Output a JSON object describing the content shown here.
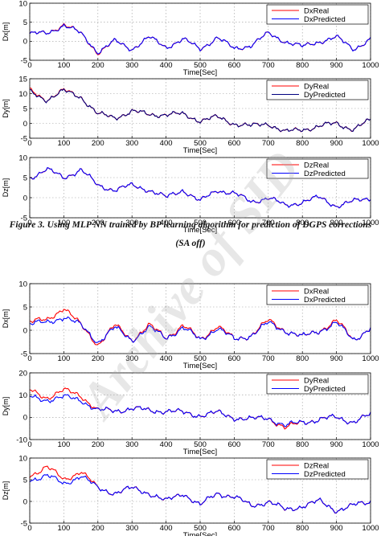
{
  "caption": {
    "line1": "Figure 3. Using MLP NN trained by BP learning algorithm for prediction of DGPS corrections",
    "line2": "(SA off)"
  },
  "watermark": "Archive of SID",
  "colors": {
    "real": "#ff0000",
    "predicted": "#0000ff",
    "predicted_dark": "#000080"
  },
  "chart_data": [
    {
      "type": "line",
      "ylabel": "Dx[m]",
      "xlabel": "Time[Sec]",
      "xlim": [
        0,
        1000
      ],
      "ylim": [
        -5,
        10
      ],
      "xticks": [
        0,
        100,
        200,
        300,
        400,
        500,
        600,
        700,
        800,
        900,
        1000
      ],
      "yticks": [
        -5,
        0,
        5,
        10
      ],
      "grid": true,
      "legend": "top-right",
      "x": [
        0,
        50,
        100,
        150,
        200,
        250,
        300,
        350,
        400,
        450,
        500,
        550,
        600,
        650,
        700,
        750,
        800,
        850,
        900,
        950,
        1000
      ],
      "series": [
        {
          "name": "DxReal",
          "values": [
            2,
            2,
            4.5,
            2,
            -3,
            0,
            -2,
            1,
            -1.5,
            0.5,
            -2,
            1,
            -2,
            -1,
            2,
            0,
            -1.5,
            0,
            1,
            -2,
            0.5
          ]
        },
        {
          "name": "DxPredicted",
          "values": [
            2,
            2,
            4.3,
            2,
            -2.8,
            0,
            -2,
            1,
            -1.5,
            0.5,
            -2,
            1,
            -2,
            -1,
            2,
            0,
            -1.5,
            0,
            1,
            -2,
            0.5
          ]
        }
      ]
    },
    {
      "type": "line",
      "ylabel": "Dy[m]",
      "xlabel": "Time[Sec]",
      "xlim": [
        0,
        1000
      ],
      "ylim": [
        -5,
        15
      ],
      "xticks": [
        0,
        100,
        200,
        300,
        400,
        500,
        600,
        700,
        800,
        900,
        1000
      ],
      "yticks": [
        -5,
        0,
        5,
        10,
        15
      ],
      "grid": true,
      "legend": "top-right",
      "x": [
        0,
        50,
        100,
        150,
        200,
        250,
        300,
        350,
        400,
        450,
        500,
        550,
        600,
        650,
        700,
        750,
        800,
        850,
        900,
        950,
        1000
      ],
      "series": [
        {
          "name": "DyReal",
          "values": [
            11,
            8,
            11,
            9,
            3,
            2,
            4,
            3,
            3,
            3,
            1,
            2,
            0,
            -1,
            0,
            -3,
            -2,
            -1,
            0,
            -2,
            1
          ]
        },
        {
          "name": "DyPredicted",
          "values": [
            10.5,
            8,
            10.8,
            9,
            3,
            2,
            4,
            3,
            3,
            3,
            1,
            2,
            0,
            -1,
            0,
            -3,
            -2,
            -1,
            0,
            -2,
            1
          ]
        }
      ]
    },
    {
      "type": "line",
      "ylabel": "Dz[m]",
      "xlabel": "Time[Sec]",
      "xlim": [
        0,
        1000
      ],
      "ylim": [
        -5,
        10
      ],
      "xticks": [
        0,
        100,
        200,
        300,
        400,
        500,
        600,
        700,
        800,
        900,
        1000
      ],
      "yticks": [
        -5,
        0,
        5,
        10
      ],
      "grid": true,
      "legend": "top-right",
      "x": [
        0,
        50,
        100,
        150,
        200,
        250,
        300,
        350,
        400,
        450,
        500,
        550,
        600,
        650,
        700,
        750,
        800,
        850,
        900,
        950,
        1000
      ],
      "series": [
        {
          "name": "DzReal",
          "values": [
            5,
            7,
            5,
            7,
            3,
            2,
            3,
            2,
            0,
            2,
            -1,
            2,
            1,
            -1,
            0,
            -2,
            -1,
            0,
            -2,
            -1,
            0
          ]
        },
        {
          "name": "DzPredicted",
          "values": [
            5,
            7,
            5,
            7,
            3,
            2,
            3,
            2,
            0,
            2,
            -1,
            2,
            1,
            -1,
            0,
            -2,
            -1,
            0,
            -2,
            -1,
            0
          ]
        }
      ]
    },
    {
      "type": "line",
      "ylabel": "Dx[m]",
      "xlabel": "Time[Sec]",
      "xlim": [
        0,
        1000
      ],
      "ylim": [
        -5,
        10
      ],
      "xticks": [
        0,
        100,
        200,
        300,
        400,
        500,
        600,
        700,
        800,
        900,
        1000
      ],
      "yticks": [
        -5,
        0,
        5,
        10
      ],
      "grid": true,
      "legend": "top-right",
      "x": [
        0,
        50,
        100,
        150,
        200,
        250,
        300,
        350,
        400,
        450,
        500,
        550,
        600,
        650,
        700,
        750,
        800,
        850,
        900,
        950,
        1000
      ],
      "series": [
        {
          "name": "DxReal",
          "values": [
            2,
            2,
            5,
            1,
            -3,
            1,
            -2,
            1,
            -1.5,
            1,
            -2,
            1,
            -2,
            -1,
            2,
            0,
            -1.5,
            0,
            2,
            -2,
            0.5
          ]
        },
        {
          "name": "DxPredicted",
          "values": [
            1.5,
            1.5,
            3,
            1,
            -2.5,
            0.5,
            -2,
            0.5,
            -1.5,
            0.5,
            -2,
            0.5,
            -2,
            -1,
            1.5,
            0,
            -1.5,
            0,
            1.5,
            -2,
            0.5
          ]
        }
      ]
    },
    {
      "type": "line",
      "ylabel": "Dy[m]",
      "xlabel": "Time[Sec]",
      "xlim": [
        0,
        1000
      ],
      "ylim": [
        -10,
        20
      ],
      "xticks": [
        0,
        100,
        200,
        300,
        400,
        500,
        600,
        700,
        800,
        900,
        1000
      ],
      "yticks": [
        -10,
        0,
        10,
        20
      ],
      "grid": true,
      "legend": "top-right",
      "x": [
        0,
        50,
        100,
        150,
        200,
        250,
        300,
        350,
        400,
        450,
        500,
        550,
        600,
        650,
        700,
        750,
        800,
        850,
        900,
        950,
        1000
      ],
      "series": [
        {
          "name": "DyReal",
          "values": [
            12,
            9,
            12,
            10,
            3,
            3,
            4,
            3,
            3,
            2,
            1,
            2,
            0,
            -1,
            0,
            -5,
            -2,
            -1,
            0,
            -2,
            1
          ]
        },
        {
          "name": "DyPredicted",
          "values": [
            9,
            8,
            9,
            8,
            3,
            3,
            4,
            3,
            3,
            2,
            1,
            2,
            0,
            -1,
            0,
            -4,
            -2,
            -1,
            0,
            -2,
            1
          ]
        }
      ]
    },
    {
      "type": "line",
      "ylabel": "Dz[m]",
      "xlabel": "Time[Sec]",
      "xlim": [
        0,
        1000
      ],
      "ylim": [
        -5,
        10
      ],
      "xticks": [
        0,
        100,
        200,
        300,
        400,
        500,
        600,
        700,
        800,
        900,
        1000
      ],
      "yticks": [
        -5,
        0,
        5,
        10
      ],
      "grid": true,
      "legend": "top-right",
      "x": [
        0,
        50,
        100,
        150,
        200,
        250,
        300,
        350,
        400,
        450,
        500,
        550,
        600,
        650,
        700,
        750,
        800,
        850,
        900,
        950,
        1000
      ],
      "series": [
        {
          "name": "DzReal",
          "values": [
            6,
            8,
            5,
            7,
            3,
            2,
            3,
            2,
            0,
            2,
            -1,
            2,
            1,
            -1,
            0,
            -2,
            -1,
            0,
            -2,
            -1,
            0
          ]
        },
        {
          "name": "DzPredicted",
          "values": [
            5,
            6,
            4,
            6,
            3,
            2,
            3,
            2,
            0,
            2,
            -1,
            2,
            1,
            -1,
            0,
            -2,
            -1,
            0,
            -2,
            -1,
            0
          ]
        }
      ]
    }
  ]
}
